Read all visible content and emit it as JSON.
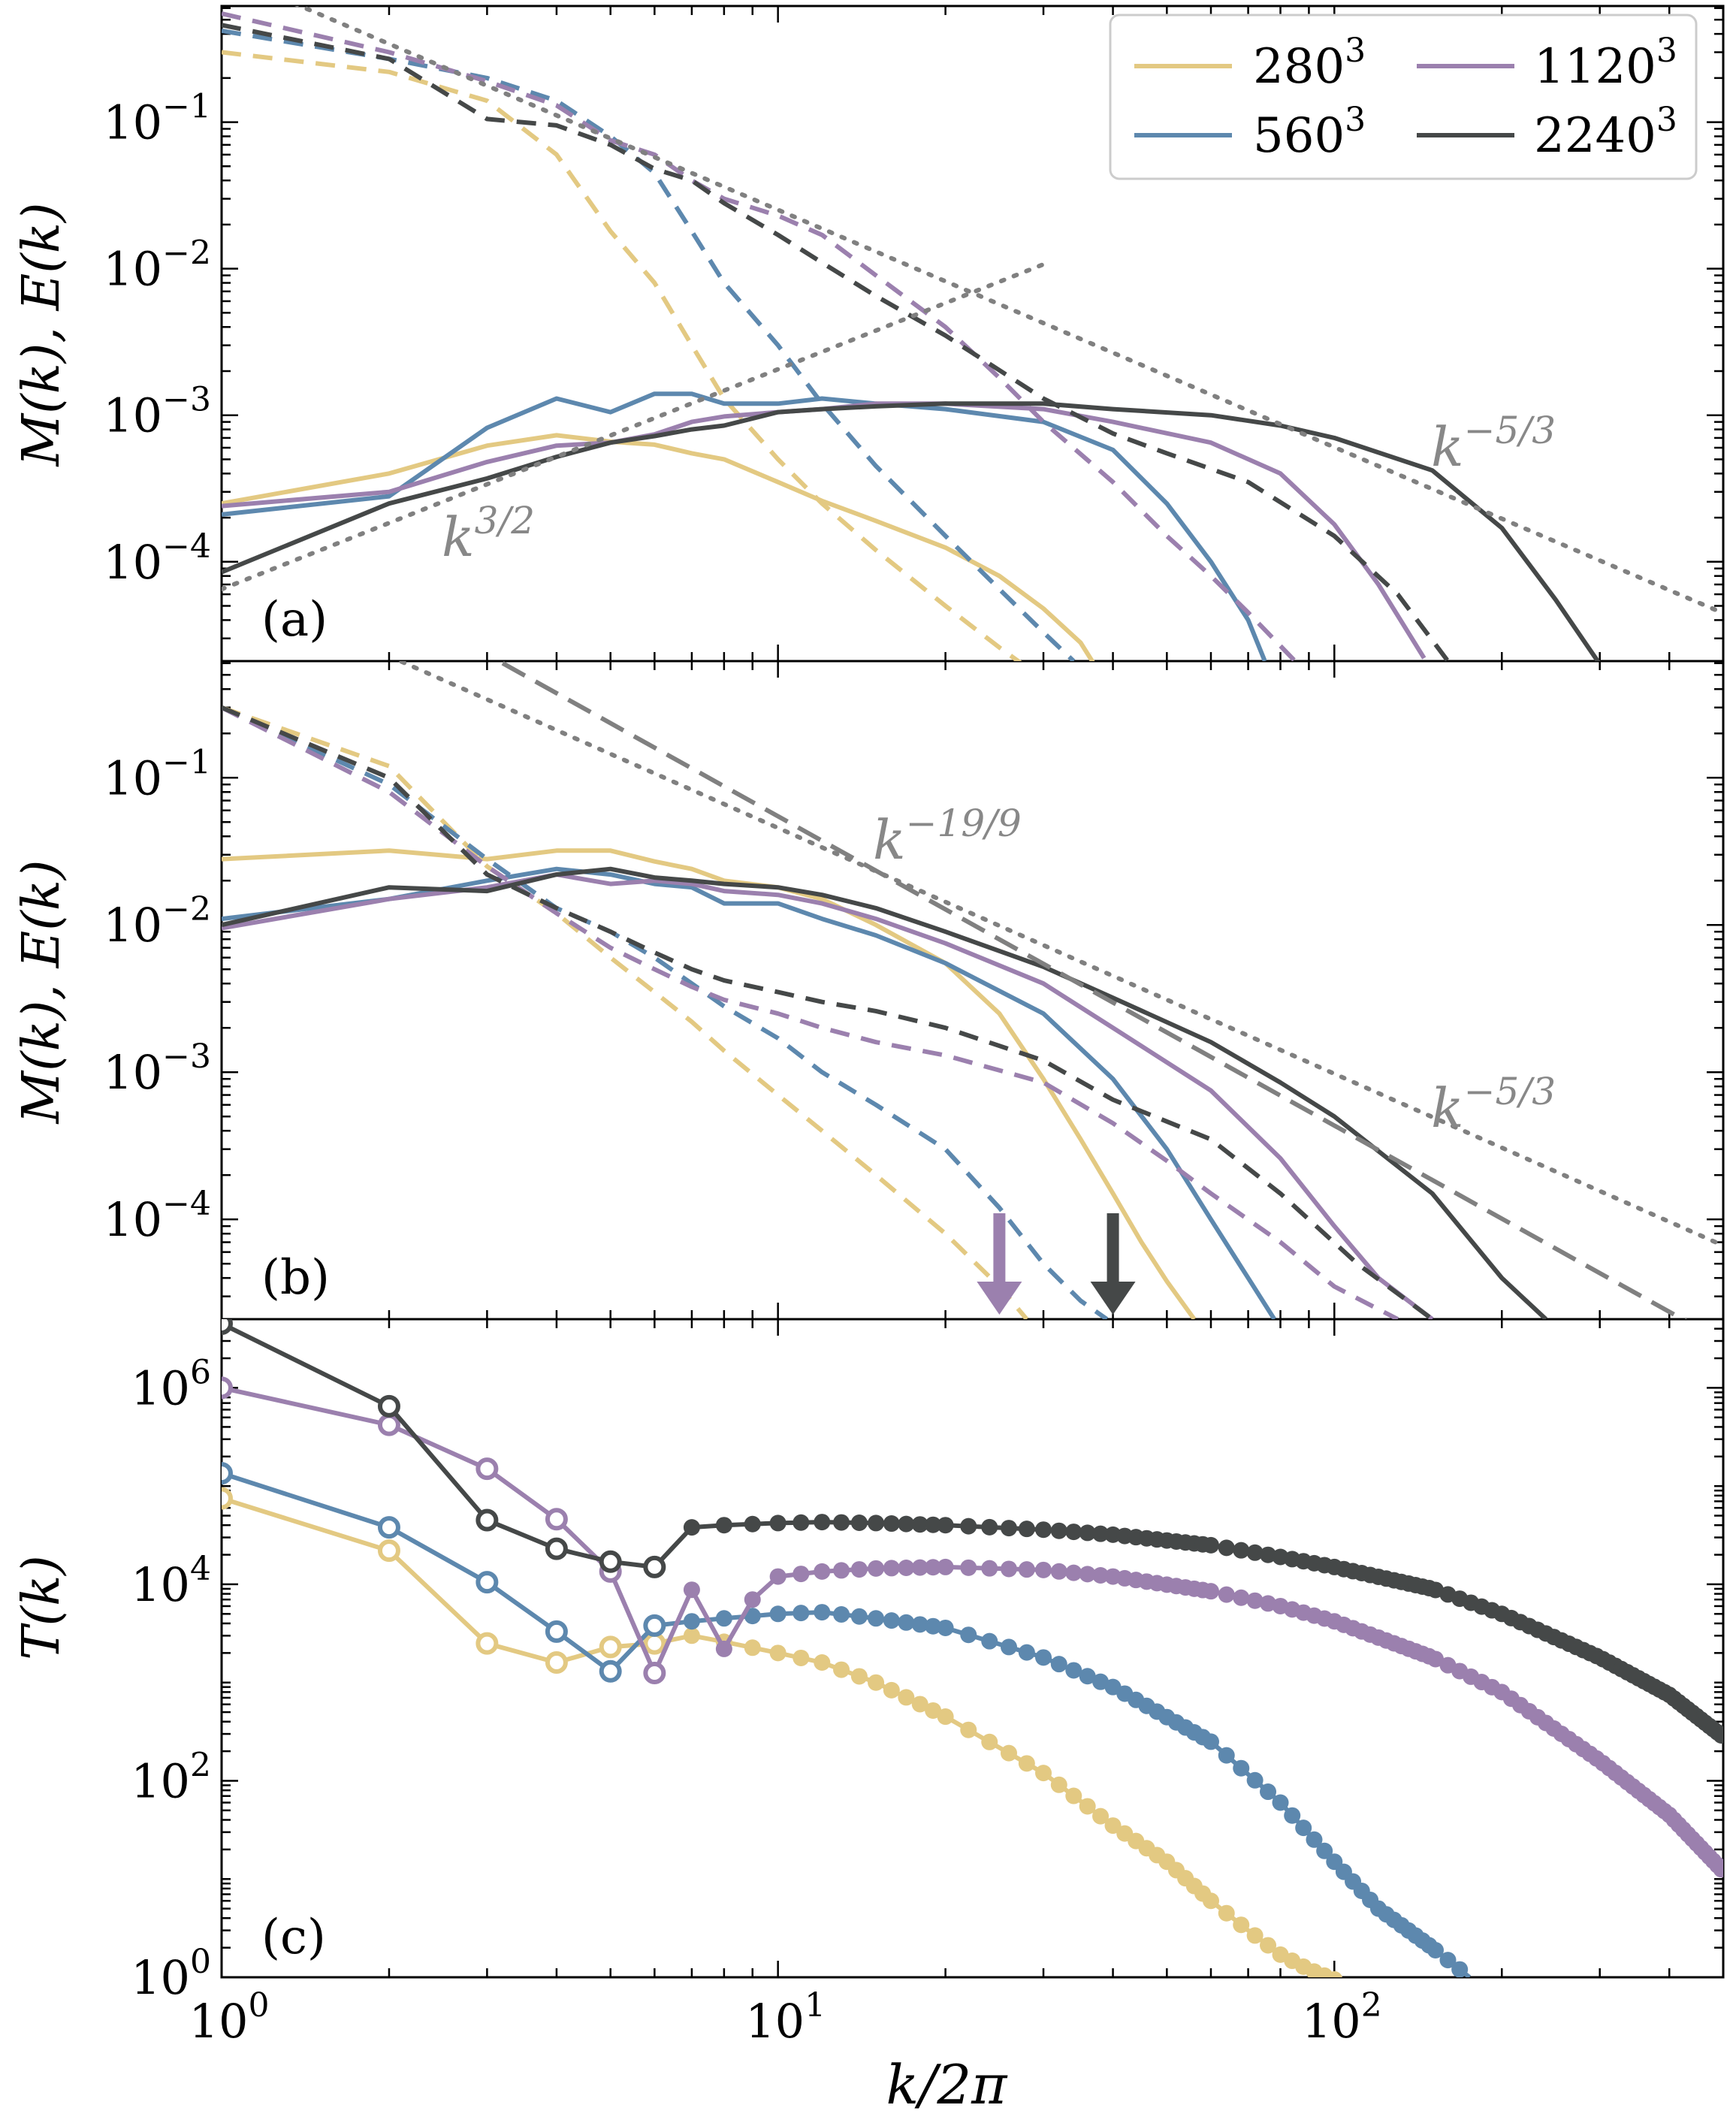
{
  "figure": {
    "xlabel": "k/2π",
    "panels": [
      {
        "id": "a",
        "panel_label": "(a)",
        "ylabel": "M(k),  E(k)"
      },
      {
        "id": "b",
        "panel_label": "(b)",
        "ylabel": "M(k),  E(k)"
      },
      {
        "id": "c",
        "panel_label": "(c)",
        "ylabel": "T(k)"
      }
    ],
    "legend": [
      {
        "base": "280",
        "exp": "3",
        "color": "#e3c982"
      },
      {
        "base": "560",
        "exp": "3",
        "color": "#5d88ae"
      },
      {
        "base": "1120",
        "exp": "3",
        "color": "#9b80ae"
      },
      {
        "base": "2240",
        "exp": "3",
        "color": "#454848"
      }
    ],
    "annotations": {
      "a_k53": {
        "base": "k",
        "exp": "−5/3"
      },
      "a_k32": {
        "base": "k",
        "exp": "3/2"
      },
      "b_k199": {
        "base": "k",
        "exp": "−19/9"
      },
      "b_k53": {
        "base": "k",
        "exp": "−5/3"
      }
    },
    "xticks": [
      {
        "base": "10",
        "exp": "0"
      },
      {
        "base": "10",
        "exp": "1"
      },
      {
        "base": "10",
        "exp": "2"
      }
    ],
    "ab_yticks": [
      {
        "base": "10",
        "exp": "−1"
      },
      {
        "base": "10",
        "exp": "−2"
      },
      {
        "base": "10",
        "exp": "−3"
      },
      {
        "base": "10",
        "exp": "−4"
      }
    ],
    "c_yticks": [
      {
        "base": "10",
        "exp": "6"
      },
      {
        "base": "10",
        "exp": "4"
      },
      {
        "base": "10",
        "exp": "2"
      },
      {
        "base": "10",
        "exp": "0"
      }
    ]
  },
  "chart_data": [
    {
      "type": "line",
      "panel": "a",
      "xscale": "log",
      "yscale": "log",
      "xlim": [
        1,
        500
      ],
      "ylim": [
        2.1e-05,
        0.62
      ],
      "series": [
        {
          "name": "280³",
          "color": "#e3c982",
          "style": "solid",
          "x": [
            1,
            2,
            3,
            4,
            5,
            6,
            7,
            8,
            10,
            12,
            15,
            20,
            25,
            30,
            35,
            37
          ],
          "y": [
            0.00025,
            0.0004,
            0.00062,
            0.00073,
            0.00066,
            0.00063,
            0.00055,
            0.0005,
            0.00035,
            0.00026,
            0.00019,
            0.000125,
            8e-05,
            4.8e-05,
            2.8e-05,
            2e-05
          ]
        },
        {
          "name": "280³",
          "color": "#e3c982",
          "style": "dashed",
          "x": [
            1,
            2,
            3,
            4,
            5,
            6,
            7,
            8,
            10,
            12,
            15,
            20,
            25,
            27.5
          ],
          "y": [
            0.3,
            0.22,
            0.14,
            0.06,
            0.018,
            0.008,
            0.003,
            0.0013,
            0.0005,
            0.00025,
            0.00012,
            5e-05,
            2.6e-05,
            2e-05
          ]
        },
        {
          "name": "560³",
          "color": "#5d88ae",
          "style": "solid",
          "x": [
            1,
            2,
            3,
            4,
            5,
            6,
            7,
            8,
            10,
            12,
            15,
            20,
            30,
            40,
            50,
            60,
            70,
            75
          ],
          "y": [
            0.00021,
            0.00028,
            0.00082,
            0.0013,
            0.00105,
            0.0014,
            0.0014,
            0.0012,
            0.0012,
            0.0013,
            0.0012,
            0.0011,
            0.0009,
            0.00058,
            0.00025,
            0.0001,
            4e-05,
            2.1e-05
          ]
        },
        {
          "name": "560³",
          "color": "#5d88ae",
          "style": "dashed",
          "x": [
            1,
            2,
            3,
            4,
            5,
            6,
            7,
            8,
            10,
            12,
            15,
            20,
            25,
            30,
            34
          ],
          "y": [
            0.42,
            0.27,
            0.2,
            0.14,
            0.08,
            0.045,
            0.018,
            0.008,
            0.003,
            0.0012,
            0.00045,
            0.00015,
            6.5e-05,
            3.3e-05,
            2.1e-05
          ]
        },
        {
          "name": "1120³",
          "color": "#9b80ae",
          "style": "solid",
          "x": [
            1,
            2,
            3,
            4,
            5,
            6,
            7,
            8,
            10,
            12,
            15,
            20,
            30,
            40,
            60,
            80,
            100,
            120,
            145
          ],
          "y": [
            0.00024,
            0.0003,
            0.00048,
            0.00062,
            0.00065,
            0.00074,
            0.0009,
            0.00098,
            0.00105,
            0.0011,
            0.0012,
            0.0012,
            0.0011,
            0.0009,
            0.00065,
            0.0004,
            0.00018,
            7e-05,
            2.2e-05
          ]
        },
        {
          "name": "1120³",
          "color": "#9b80ae",
          "style": "dashed",
          "x": [
            1,
            2,
            3,
            4,
            5,
            6,
            7,
            8,
            10,
            12,
            15,
            20,
            25,
            30,
            40,
            50,
            60,
            70,
            85
          ],
          "y": [
            0.55,
            0.3,
            0.19,
            0.13,
            0.075,
            0.06,
            0.04,
            0.03,
            0.023,
            0.017,
            0.009,
            0.004,
            0.0018,
            0.0009,
            0.00035,
            0.00015,
            8e-05,
            4.5e-05,
            2.1e-05
          ]
        },
        {
          "name": "2240³",
          "color": "#454848",
          "style": "solid",
          "x": [
            1,
            2,
            3,
            4,
            5,
            6,
            7,
            8,
            10,
            12,
            15,
            20,
            30,
            40,
            60,
            80,
            100,
            150,
            200,
            250,
            300
          ],
          "y": [
            8.5e-05,
            0.00025,
            0.00037,
            0.00052,
            0.00065,
            0.00072,
            0.0008,
            0.00085,
            0.00105,
            0.0011,
            0.00115,
            0.0012,
            0.0012,
            0.0011,
            0.001,
            0.00085,
            0.0007,
            0.00042,
            0.00017,
            5.5e-05,
            2e-05
          ]
        },
        {
          "name": "2240³",
          "color": "#454848",
          "style": "dashed",
          "x": [
            1,
            2,
            3,
            4,
            5,
            6,
            7,
            8,
            10,
            12,
            15,
            20,
            30,
            40,
            50,
            70,
            100,
            130,
            160
          ],
          "y": [
            0.46,
            0.27,
            0.105,
            0.095,
            0.07,
            0.048,
            0.04,
            0.028,
            0.017,
            0.011,
            0.0065,
            0.0035,
            0.0013,
            0.00075,
            0.00055,
            0.00035,
            0.00015,
            6e-05,
            2.1e-05
          ]
        },
        {
          "name": "",
          "color": "#808080",
          "style": "dotted",
          "x": [
            1.1,
            500
          ],
          "y": [
            0.9,
            4.46e-05
          ]
        },
        {
          "name": "",
          "color": "#808080",
          "style": "dotted",
          "x": [
            1,
            30
          ],
          "y": [
            6.5e-05,
            0.0107
          ]
        }
      ]
    },
    {
      "type": "line",
      "panel": "b",
      "xscale": "log",
      "yscale": "log",
      "xlim": [
        1,
        500
      ],
      "ylim": [
        2.1e-05,
        0.62
      ],
      "series": [
        {
          "name": "280³",
          "color": "#e3c982",
          "style": "solid",
          "x": [
            1,
            2,
            3,
            4,
            5,
            6,
            7,
            8,
            10,
            12,
            15,
            20,
            25,
            30,
            35,
            40,
            45,
            50,
            56
          ],
          "y": [
            0.028,
            0.032,
            0.028,
            0.032,
            0.032,
            0.027,
            0.024,
            0.02,
            0.018,
            0.015,
            0.01,
            0.0055,
            0.0025,
            0.0009,
            0.00035,
            0.00015,
            7e-05,
            3.8e-05,
            2.1e-05
          ]
        },
        {
          "name": "280³",
          "color": "#e3c982",
          "style": "dashed",
          "x": [
            1,
            2,
            3,
            4,
            5,
            6,
            7,
            8,
            10,
            12,
            15,
            20,
            25,
            28
          ],
          "y": [
            0.3,
            0.12,
            0.025,
            0.012,
            0.006,
            0.0035,
            0.0022,
            0.0014,
            0.0007,
            0.0004,
            0.0002,
            8e-05,
            3.5e-05,
            2.1e-05
          ]
        },
        {
          "name": "560³",
          "color": "#5d88ae",
          "style": "solid",
          "x": [
            1,
            2,
            3,
            4,
            5,
            6,
            7,
            8,
            10,
            12,
            15,
            20,
            30,
            40,
            50,
            60,
            70,
            78
          ],
          "y": [
            0.011,
            0.015,
            0.02,
            0.024,
            0.022,
            0.019,
            0.018,
            0.014,
            0.014,
            0.011,
            0.0085,
            0.0055,
            0.0025,
            0.0009,
            0.0003,
            0.0001,
            4e-05,
            2.1e-05
          ]
        },
        {
          "name": "560³",
          "color": "#5d88ae",
          "style": "dashed",
          "x": [
            1,
            2,
            3,
            4,
            5,
            6,
            7,
            8,
            10,
            12,
            15,
            20,
            25,
            30,
            35,
            39
          ],
          "y": [
            0.3,
            0.09,
            0.028,
            0.013,
            0.009,
            0.006,
            0.004,
            0.0028,
            0.0017,
            0.001,
            0.0006,
            0.0003,
            0.00012,
            5e-05,
            2.8e-05,
            2.1e-05
          ]
        },
        {
          "name": "1120³",
          "color": "#9b80ae",
          "style": "solid",
          "x": [
            1,
            2,
            3,
            4,
            5,
            6,
            7,
            8,
            10,
            12,
            15,
            20,
            30,
            40,
            60,
            80,
            100,
            120,
            150
          ],
          "y": [
            0.0095,
            0.015,
            0.018,
            0.022,
            0.019,
            0.02,
            0.019,
            0.017,
            0.016,
            0.014,
            0.011,
            0.0075,
            0.004,
            0.002,
            0.00075,
            0.00026,
            9e-05,
            4e-05,
            2.1e-05
          ]
        },
        {
          "name": "1120³",
          "color": "#9b80ae",
          "style": "dashed",
          "x": [
            1,
            2,
            3,
            4,
            5,
            6,
            7,
            8,
            10,
            12,
            15,
            20,
            30,
            40,
            50,
            60,
            80,
            100,
            130
          ],
          "y": [
            0.3,
            0.08,
            0.025,
            0.012,
            0.007,
            0.005,
            0.0038,
            0.0031,
            0.0025,
            0.002,
            0.0016,
            0.0013,
            0.00085,
            0.00045,
            0.00025,
            0.00015,
            7e-05,
            3.5e-05,
            2.1e-05
          ]
        },
        {
          "name": "2240³",
          "color": "#454848",
          "style": "solid",
          "x": [
            1,
            2,
            3,
            4,
            5,
            6,
            7,
            8,
            10,
            12,
            15,
            20,
            30,
            40,
            60,
            80,
            100,
            150,
            200,
            240
          ],
          "y": [
            0.01,
            0.018,
            0.017,
            0.022,
            0.024,
            0.021,
            0.02,
            0.019,
            0.018,
            0.016,
            0.013,
            0.009,
            0.0052,
            0.0032,
            0.0016,
            0.00085,
            0.0005,
            0.00015,
            4e-05,
            2.1e-05
          ]
        },
        {
          "name": "2240³",
          "color": "#454848",
          "style": "dashed",
          "x": [
            1,
            2,
            3,
            4,
            5,
            6,
            7,
            8,
            10,
            12,
            15,
            20,
            30,
            40,
            60,
            80,
            110,
            150
          ],
          "y": [
            0.3,
            0.1,
            0.022,
            0.013,
            0.009,
            0.0065,
            0.005,
            0.0042,
            0.0035,
            0.003,
            0.0026,
            0.002,
            0.0012,
            0.00065,
            0.00035,
            0.00015,
            5e-05,
            2.1e-05
          ]
        },
        {
          "name": "",
          "color": "#808080",
          "style": "dashed",
          "x": [
            3.2,
            470
          ],
          "y": [
            0.6,
            1.68e-05
          ]
        },
        {
          "name": "",
          "color": "#808080",
          "style": "dotted",
          "x": [
            2,
            500
          ],
          "y": [
            0.67,
            6.64e-05
          ]
        }
      ],
      "arrows": [
        {
          "x": 25,
          "color": "#9b80ae"
        },
        {
          "x": 40,
          "color": "#454848"
        }
      ]
    },
    {
      "type": "line",
      "panel": "c",
      "xscale": "log",
      "yscale": "log",
      "xlim": [
        1,
        500
      ],
      "ylim": [
        1,
        5000000
      ],
      "open_marker_kmax": 6,
      "series": [
        {
          "name": "280³",
          "color": "#e3c982",
          "x": [
            1,
            2,
            3,
            4,
            5,
            6,
            7,
            8,
            10,
            12,
            15,
            20,
            30,
            40,
            50,
            60,
            70,
            80,
            90,
            100
          ],
          "y": [
            75000,
            22000,
            2500,
            1600,
            2300,
            2500,
            3000,
            2600,
            2000,
            1600,
            1000,
            450,
            120,
            35,
            15,
            6,
            3,
            1.7,
            1.2,
            0.95
          ]
        },
        {
          "name": "560³",
          "color": "#5d88ae",
          "x": [
            1,
            2,
            3,
            4,
            5,
            6,
            7,
            8,
            10,
            12,
            15,
            20,
            30,
            40,
            60,
            80,
            100,
            120,
            150,
            175
          ],
          "y": [
            135000,
            38000,
            10500,
            3300,
            1300,
            3800,
            4200,
            4500,
            5000,
            5200,
            4500,
            3600,
            1800,
            900,
            250,
            60,
            15,
            5,
            2,
            1
          ]
        },
        {
          "name": "1120³",
          "color": "#9b80ae",
          "x": [
            1,
            2,
            3,
            4,
            5,
            6,
            7,
            8,
            9,
            10,
            12,
            15,
            20,
            30,
            40,
            60,
            80,
            100,
            150,
            200,
            300,
            400,
            500
          ],
          "y": [
            1000000,
            420000,
            150000,
            46000,
            13500,
            1250,
            8800,
            2200,
            7000,
            12000,
            13500,
            14500,
            15000,
            14000,
            12000,
            8500,
            6000,
            4200,
            1800,
            800,
            160,
            45,
            12
          ]
        },
        {
          "name": "2240³",
          "color": "#454848",
          "x": [
            1,
            2,
            3,
            4,
            5,
            6,
            7,
            8,
            10,
            12,
            15,
            20,
            30,
            40,
            60,
            80,
            100,
            150,
            200,
            300,
            400,
            500
          ],
          "y": [
            4500000,
            650000,
            45000,
            23000,
            17000,
            15000,
            38000,
            40000,
            42000,
            43000,
            42000,
            40000,
            36000,
            32000,
            25000,
            19000,
            15000,
            9000,
            5000,
            1800,
            750,
            280
          ]
        }
      ]
    }
  ]
}
